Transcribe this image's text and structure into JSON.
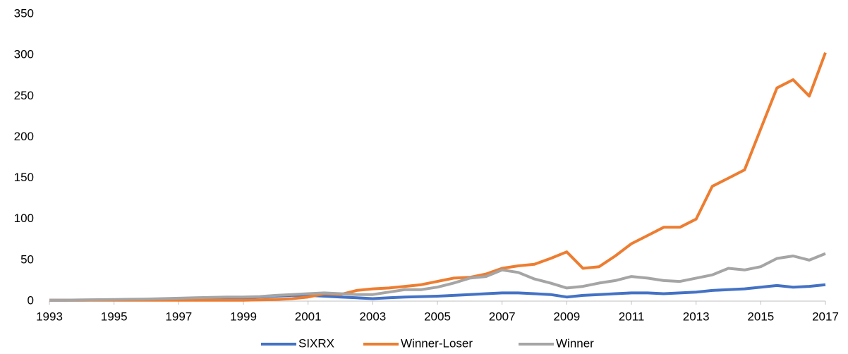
{
  "chart_data": {
    "type": "line",
    "x": [
      1993,
      1993.5,
      1994,
      1994.5,
      1995,
      1995.5,
      1996,
      1996.5,
      1997,
      1997.5,
      1998,
      1998.5,
      1999,
      1999.5,
      2000,
      2000.5,
      2001,
      2001.5,
      2002,
      2002.5,
      2003,
      2003.5,
      2004,
      2004.5,
      2005,
      2005.5,
      2006,
      2006.5,
      2007,
      2007.5,
      2008,
      2008.5,
      2009,
      2009.5,
      2010,
      2010.5,
      2011,
      2011.5,
      2012,
      2012.5,
      2013,
      2013.5,
      2014,
      2014.5,
      2015,
      2015.5,
      2016,
      2016.5,
      2017
    ],
    "series": [
      {
        "name": "SIXRX",
        "color": "#4472c4",
        "values": [
          1,
          1,
          1.2,
          1.3,
          1.5,
          1.7,
          2,
          2.2,
          2.5,
          3,
          3.3,
          3.7,
          4,
          5,
          6,
          7,
          7,
          6,
          5,
          4,
          3,
          4,
          5,
          5.5,
          6,
          7,
          8,
          9,
          10,
          10,
          9,
          8,
          5,
          7,
          8,
          9,
          10,
          10,
          9,
          10,
          11,
          13,
          14,
          15,
          17,
          19,
          17,
          18,
          20
        ]
      },
      {
        "name": "Winner-Loser",
        "color": "#ed7d31",
        "values": [
          1,
          1,
          1,
          1,
          1,
          1,
          1,
          1,
          1,
          1,
          1,
          1,
          1,
          1.5,
          2,
          3,
          5,
          9,
          8,
          13,
          15,
          16,
          18,
          20,
          24,
          28,
          29,
          33,
          40,
          43,
          45,
          52,
          60,
          40,
          42,
          55,
          70,
          80,
          90,
          90,
          100,
          140,
          150,
          160,
          210,
          260,
          270,
          250,
          303
        ]
      },
      {
        "name": "Winner",
        "color": "#a5a5a5",
        "values": [
          1,
          1.2,
          1.5,
          1.7,
          2,
          2.2,
          2.5,
          3,
          3.5,
          4,
          4.5,
          5,
          5,
          5.5,
          7,
          8,
          9,
          10,
          9,
          8,
          8,
          11,
          14,
          14,
          17,
          22,
          28,
          30,
          38,
          35,
          27,
          22,
          16,
          18,
          22,
          25,
          30,
          28,
          25,
          24,
          28,
          32,
          40,
          38,
          42,
          52,
          55,
          50,
          58
        ]
      }
    ],
    "xlim": [
      1993,
      2017
    ],
    "xticks": [
      1993,
      1995,
      1997,
      1999,
      2001,
      2003,
      2005,
      2007,
      2009,
      2011,
      2013,
      2015,
      2017
    ],
    "ylim": [
      0,
      350
    ],
    "yticks": [
      0,
      50,
      100,
      150,
      200,
      250,
      300,
      350
    ],
    "grid": false,
    "legend": "bottom"
  }
}
